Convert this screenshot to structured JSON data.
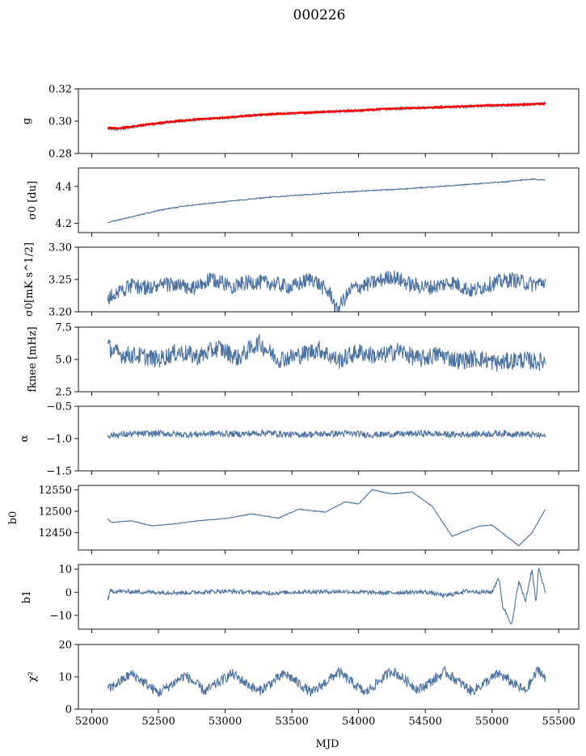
{
  "figure": {
    "suptitle": "000226",
    "shared_xlabel": "MJD"
  },
  "chart_data": [
    {
      "type": "line",
      "ylabel": "g",
      "ylim": [
        0.28,
        0.32
      ],
      "yticks": [
        "0.28",
        "0.30",
        "0.32"
      ],
      "ytick_values": [
        0.28,
        0.3,
        0.32
      ],
      "xlim": [
        51900,
        55650
      ],
      "xticks": [
        52000,
        52500,
        53000,
        53500,
        54000,
        54500,
        55000,
        55500
      ],
      "x": [
        52120,
        52200,
        52400,
        52600,
        52800,
        53000,
        53200,
        53400,
        53600,
        53800,
        54000,
        54200,
        54400,
        54600,
        54800,
        55000,
        55200,
        55400
      ],
      "series": [
        {
          "color": "#4c72a0",
          "values": [
            0.2955,
            0.295,
            0.2975,
            0.2995,
            0.301,
            0.302,
            0.3035,
            0.3045,
            0.305,
            0.306,
            0.3065,
            0.3075,
            0.308,
            0.3085,
            0.309,
            0.3095,
            0.31,
            0.311
          ]
        },
        {
          "color": "#ff0000",
          "values": [
            0.296,
            0.2955,
            0.2978,
            0.2998,
            0.3012,
            0.3022,
            0.3036,
            0.3046,
            0.3052,
            0.306,
            0.3066,
            0.3076,
            0.3081,
            0.3086,
            0.3092,
            0.3098,
            0.3102,
            0.3108
          ]
        }
      ]
    },
    {
      "type": "line",
      "ylabel": "σ0 [du]",
      "ylim": [
        4.15,
        4.5
      ],
      "yticks": [
        "4.2",
        "4.4"
      ],
      "ytick_values": [
        4.2,
        4.4
      ],
      "xlim": [
        51900,
        55650
      ],
      "xticks": [
        52000,
        52500,
        53000,
        53500,
        54000,
        54500,
        55000,
        55500
      ],
      "x": [
        52120,
        52300,
        52500,
        52700,
        52900,
        53100,
        53300,
        53500,
        53700,
        53900,
        54100,
        54300,
        54500,
        54700,
        54900,
        55100,
        55300,
        55400
      ],
      "series": [
        {
          "color": "#4c72a0",
          "values": [
            4.205,
            4.235,
            4.27,
            4.295,
            4.31,
            4.325,
            4.34,
            4.35,
            4.36,
            4.37,
            4.378,
            4.385,
            4.395,
            4.405,
            4.415,
            4.425,
            4.44,
            4.435
          ]
        }
      ]
    },
    {
      "type": "line",
      "ylabel": "σ0[mK s^1/2]",
      "ylim": [
        3.2,
        3.3
      ],
      "yticks": [
        "3.20",
        "3.25",
        "3.30"
      ],
      "ytick_values": [
        3.2,
        3.25,
        3.3
      ],
      "xlim": [
        51900,
        55650
      ],
      "xticks": [
        52000,
        52500,
        53000,
        53500,
        54000,
        54500,
        55000,
        55500
      ],
      "x": [
        52120,
        52200,
        52300,
        52450,
        52600,
        52750,
        52900,
        53050,
        53200,
        53350,
        53500,
        53650,
        53800,
        53830,
        53950,
        54100,
        54250,
        54400,
        54550,
        54700,
        54850,
        55000,
        55150,
        55300,
        55400
      ],
      "series": [
        {
          "color": "#4c72a0",
          "values": [
            3.219,
            3.232,
            3.24,
            3.237,
            3.243,
            3.235,
            3.25,
            3.24,
            3.246,
            3.244,
            3.238,
            3.252,
            3.225,
            3.201,
            3.236,
            3.244,
            3.255,
            3.241,
            3.238,
            3.246,
            3.232,
            3.244,
            3.25,
            3.242,
            3.247
          ]
        }
      ]
    },
    {
      "type": "line",
      "ylabel": "fknee [mHz]",
      "ylim": [
        2.5,
        7.5
      ],
      "yticks": [
        "2.5",
        "5.0",
        "7.5"
      ],
      "ytick_values": [
        2.5,
        5.0,
        7.5
      ],
      "xlim": [
        51900,
        55650
      ],
      "xticks": [
        52000,
        52500,
        53000,
        53500,
        54000,
        54500,
        55000,
        55500
      ],
      "x": [
        52120,
        52200,
        52350,
        52500,
        52650,
        52800,
        52950,
        53100,
        53250,
        53400,
        53550,
        53700,
        53850,
        54000,
        54150,
        54300,
        54450,
        54600,
        54750,
        54900,
        55050,
        55200,
        55350,
        55400
      ],
      "series": [
        {
          "color": "#4c72a0",
          "values": [
            6.0,
            5.4,
            5.3,
            5.0,
            5.6,
            5.2,
            5.9,
            5.1,
            6.3,
            5.0,
            5.3,
            5.8,
            4.9,
            5.6,
            5.2,
            5.7,
            5.0,
            5.4,
            4.9,
            5.1,
            4.7,
            5.0,
            4.8,
            4.9
          ]
        }
      ]
    },
    {
      "type": "line",
      "ylabel": "α",
      "ylim": [
        -1.5,
        -0.5
      ],
      "yticks": [
        "−1.5",
        "−1.0",
        "−0.5"
      ],
      "ytick_values": [
        -1.5,
        -1.0,
        -0.5
      ],
      "xlim": [
        51900,
        55650
      ],
      "xticks": [
        52000,
        52500,
        53000,
        53500,
        54000,
        54500,
        55000,
        55500
      ],
      "x": [
        52120,
        52300,
        52500,
        52700,
        52900,
        53100,
        53300,
        53500,
        53700,
        53900,
        54100,
        54300,
        54500,
        54700,
        54900,
        55100,
        55300,
        55400
      ],
      "series": [
        {
          "color": "#4c72a0",
          "values": [
            -0.95,
            -0.93,
            -0.92,
            -0.94,
            -0.92,
            -0.93,
            -0.91,
            -0.94,
            -0.93,
            -0.92,
            -0.94,
            -0.93,
            -0.92,
            -0.94,
            -0.93,
            -0.92,
            -0.94,
            -0.96
          ]
        }
      ]
    },
    {
      "type": "line",
      "ylabel": "b0",
      "ylim": [
        12410,
        12560
      ],
      "yticks": [
        "12450",
        "12500",
        "12550"
      ],
      "ytick_values": [
        12450,
        12500,
        12550
      ],
      "xlim": [
        51900,
        55650
      ],
      "xticks": [
        52000,
        52500,
        53000,
        53500,
        54000,
        54500,
        55000,
        55500
      ],
      "x": [
        52120,
        52150,
        52300,
        52450,
        52600,
        52800,
        53000,
        53200,
        53400,
        53550,
        53750,
        53900,
        54000,
        54100,
        54250,
        54400,
        54550,
        54700,
        54800,
        54900,
        55000,
        55100,
        55150,
        55200,
        55300,
        55400
      ],
      "series": [
        {
          "color": "#4c72a0",
          "values": [
            12482,
            12474,
            12478,
            12466,
            12470,
            12478,
            12483,
            12494,
            12484,
            12505,
            12498,
            12522,
            12517,
            12550,
            12540,
            12545,
            12512,
            12442,
            12454,
            12465,
            12468,
            12444,
            12432,
            12420,
            12450,
            12505
          ]
        }
      ]
    },
    {
      "type": "line",
      "ylabel": "b1",
      "ylim": [
        -16,
        12
      ],
      "yticks": [
        "−10",
        "0",
        "10"
      ],
      "ytick_values": [
        -10,
        0,
        10
      ],
      "xlim": [
        51900,
        55650
      ],
      "xticks": [
        52000,
        52500,
        53000,
        53500,
        54000,
        54500,
        55000,
        55500
      ],
      "x": [
        52120,
        52140,
        52400,
        52700,
        53000,
        53300,
        53600,
        53900,
        54200,
        54500,
        54650,
        54800,
        55000,
        55050,
        55080,
        55150,
        55200,
        55250,
        55300,
        55330,
        55350,
        55400
      ],
      "series": [
        {
          "color": "#4c72a0",
          "values": [
            -3.5,
            0.5,
            0.1,
            -0.2,
            0.5,
            -0.4,
            0.2,
            0.3,
            -0.3,
            0.2,
            -1.5,
            0.5,
            0.0,
            6.5,
            -6.0,
            -14.0,
            5.0,
            -4.0,
            10.0,
            -5.0,
            10.5,
            0.0
          ]
        }
      ]
    },
    {
      "type": "line",
      "ylabel": "χ²",
      "ylim": [
        0,
        20
      ],
      "yticks": [
        "0",
        "10",
        "20"
      ],
      "ytick_values": [
        0,
        10,
        20
      ],
      "xlabel": "MJD",
      "xlim": [
        51900,
        55650
      ],
      "xticks": [
        52000,
        52500,
        53000,
        53500,
        54000,
        54500,
        55000,
        55500
      ],
      "x": [
        52120,
        52300,
        52500,
        52700,
        52850,
        53050,
        53250,
        53450,
        53650,
        53850,
        54050,
        54250,
        54450,
        54650,
        54850,
        55050,
        55250,
        55350,
        55400
      ],
      "series": [
        {
          "color": "#4c72a0",
          "values": [
            6.0,
            11.0,
            5.0,
            10.5,
            5.5,
            11.0,
            5.5,
            11.0,
            5.0,
            11.5,
            5.0,
            12.0,
            6.0,
            11.5,
            5.5,
            11.0,
            5.5,
            12.5,
            9.0
          ]
        }
      ]
    }
  ]
}
